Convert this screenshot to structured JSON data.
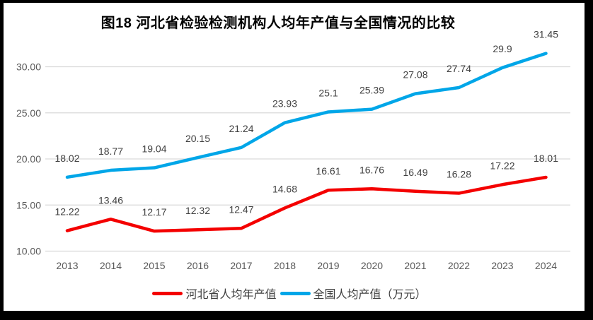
{
  "chart_data": {
    "type": "line",
    "title": "图18 河北省检验检测机构人均年产值与全国情况的比较",
    "categories": [
      "2013",
      "2014",
      "2015",
      "2016",
      "2017",
      "2018",
      "2019",
      "2020",
      "2021",
      "2022",
      "2023",
      "2024"
    ],
    "series": [
      {
        "name": "河北省人均年产值",
        "color": "#f40000",
        "values": [
          12.22,
          13.46,
          12.17,
          12.32,
          12.47,
          14.68,
          16.61,
          16.76,
          16.49,
          16.28,
          17.22,
          18.01
        ]
      },
      {
        "name": "全国人均产值（万元）",
        "color": "#00a6e8",
        "values": [
          18.02,
          18.77,
          19.04,
          20.15,
          21.24,
          23.93,
          25.1,
          25.39,
          27.08,
          27.74,
          29.9,
          31.45
        ]
      }
    ],
    "xlabel": "",
    "ylabel": "",
    "ylim": [
      10,
      32
    ],
    "yticks": [
      10,
      15,
      20,
      25,
      30
    ],
    "ytick_labels": [
      "10.00",
      "15.00",
      "20.00",
      "25.00",
      "30.00"
    ],
    "grid": true,
    "grid_color": "#d9d9d9",
    "axis_label_color": "#595959",
    "data_label_color": "#404040",
    "data_labels": "above",
    "legend_position": "bottom"
  }
}
